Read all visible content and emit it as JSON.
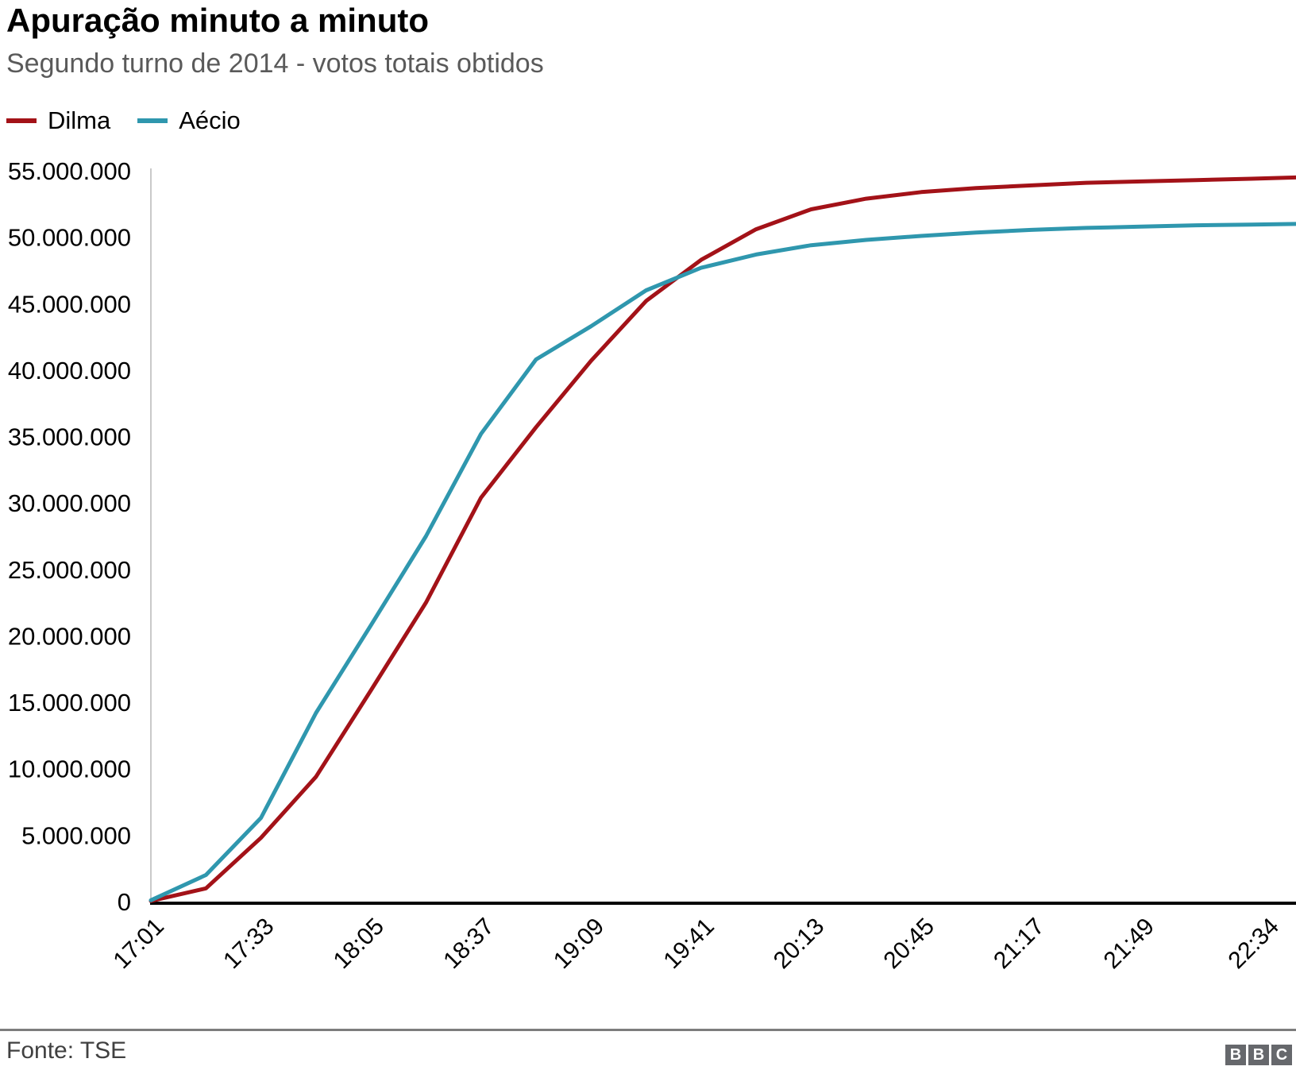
{
  "header": {
    "title": "Apuração minuto a minuto",
    "subtitle": "Segundo turno de 2014 - votos totais obtidos"
  },
  "legend": {
    "items": [
      {
        "label": "Dilma",
        "color": "#a31218"
      },
      {
        "label": "Aécio",
        "color": "#2f97ae"
      }
    ]
  },
  "footer": {
    "source": "Fonte: TSE",
    "logo_letters": [
      "B",
      "B",
      "C"
    ],
    "logo_color": "#66686c"
  },
  "chart_data": {
    "type": "line",
    "title": "Apuração minuto a minuto",
    "subtitle": "Segundo turno de 2014 - votos totais obtidos",
    "xlabel": "",
    "ylabel": "votos totais obtidos",
    "grid": false,
    "legend_position": "top-left",
    "axis_color": "#c9c9c9",
    "baseline_color": "#000000",
    "xlim_minutes": [
      0,
      333
    ],
    "ylim": [
      0,
      55000000
    ],
    "x_tick_labels": [
      "17:01",
      "17:33",
      "18:05",
      "18:37",
      "19:09",
      "19:41",
      "20:13",
      "20:45",
      "21:17",
      "21:49",
      "22:34"
    ],
    "x_tick_minutes": [
      0,
      32,
      64,
      96,
      128,
      160,
      192,
      224,
      256,
      288,
      333
    ],
    "y_ticks": [
      0,
      5000000,
      10000000,
      15000000,
      20000000,
      25000000,
      30000000,
      35000000,
      40000000,
      45000000,
      50000000,
      55000000
    ],
    "y_tick_labels": [
      "0",
      "5.000.000",
      "10.000.000",
      "15.000.000",
      "20.000.000",
      "25.000.000",
      "30.000.000",
      "35.000.000",
      "40.000.000",
      "45.000.000",
      "50.000.000",
      "55.000.000"
    ],
    "series": [
      {
        "name": "Dilma",
        "color": "#a31218",
        "minutes": [
          0,
          16,
          32,
          48,
          64,
          80,
          96,
          112,
          128,
          144,
          160,
          176,
          192,
          208,
          224,
          240,
          256,
          272,
          288,
          304,
          320,
          333
        ],
        "values": [
          50000,
          1000000,
          4800000,
          9400000,
          15900000,
          22500000,
          30400000,
          35700000,
          40700000,
          45200000,
          48300000,
          50600000,
          52100000,
          52900000,
          53400000,
          53700000,
          53900000,
          54100000,
          54200000,
          54300000,
          54400000,
          54500000
        ]
      },
      {
        "name": "Aécio",
        "color": "#2f97ae",
        "minutes": [
          0,
          16,
          32,
          48,
          64,
          80,
          96,
          112,
          128,
          144,
          160,
          176,
          192,
          208,
          224,
          240,
          256,
          272,
          288,
          304,
          320,
          333
        ],
        "values": [
          100000,
          2000000,
          6300000,
          14200000,
          20800000,
          27500000,
          35200000,
          40800000,
          43300000,
          46000000,
          47700000,
          48700000,
          49400000,
          49800000,
          50100000,
          50350000,
          50550000,
          50700000,
          50800000,
          50900000,
          50950000,
          51000000
        ]
      }
    ]
  }
}
